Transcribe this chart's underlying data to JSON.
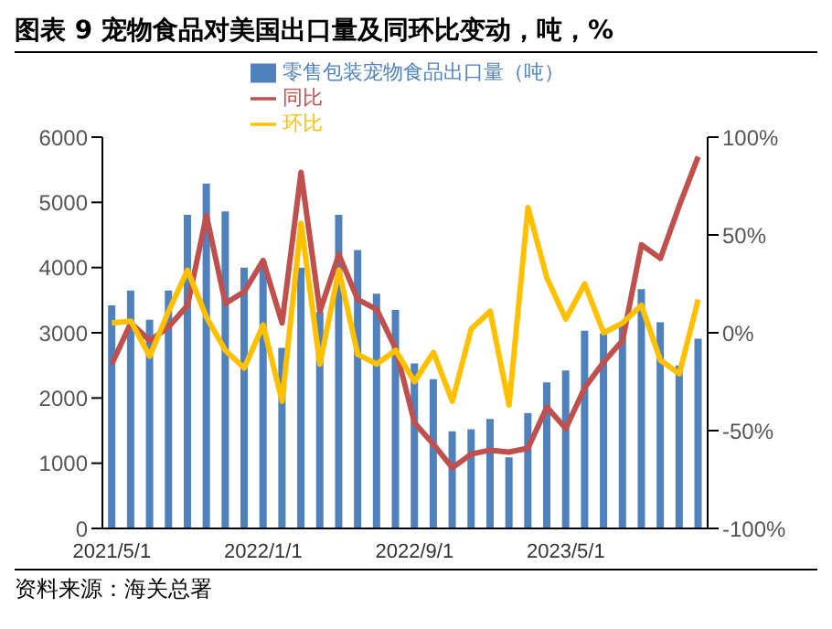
{
  "chart_data": {
    "type": "bar",
    "title": "图表 9 宠物食品对美国出口量及同环比变动，吨，%",
    "categories": [
      "2021/5/1",
      null,
      null,
      null,
      null,
      null,
      null,
      null,
      "2022/1/1",
      null,
      null,
      null,
      null,
      null,
      null,
      null,
      "2022/9/1",
      null,
      null,
      null,
      null,
      null,
      null,
      null,
      "2023/5/1",
      null,
      null,
      null,
      null,
      null,
      null,
      null
    ],
    "series": [
      {
        "name": "零售包装宠物食品出口量（吨）",
        "color": "#4f81bd",
        "values": [
          3420,
          3650,
          3200,
          3650,
          4810,
          5290,
          4860,
          4000,
          4100,
          2770,
          4000,
          3320,
          4810,
          4270,
          3600,
          3350,
          2530,
          2290,
          1490,
          1520,
          1680,
          1090,
          1770,
          2240,
          2420,
          3030,
          2990,
          3100,
          3670,
          3160,
          2500,
          2910
        ]
      },
      {
        "name": "同比",
        "type": "line",
        "axis": "y2",
        "color": "#c0504d",
        "values": [
          -16,
          5,
          -4,
          3,
          14,
          60,
          15,
          21,
          37,
          5,
          82,
          11,
          40,
          17,
          12,
          -8,
          -46,
          -57,
          -69,
          -62,
          -60,
          -61,
          -59,
          -38,
          -49,
          -28,
          -15,
          -4,
          45,
          38,
          65,
          90
        ]
      },
      {
        "name": "环比",
        "type": "line",
        "axis": "y2",
        "color": "#ffc000",
        "values": [
          5,
          6,
          -12,
          11,
          32,
          8,
          -9,
          -18,
          4,
          -35,
          56,
          -16,
          32,
          -11,
          -16,
          -9,
          -25,
          -10,
          -35,
          2,
          11,
          -37,
          64,
          28,
          7,
          25,
          0,
          5,
          14,
          -14,
          -21,
          17
        ]
      }
    ],
    "ylim": [
      0,
      6000
    ],
    "yticks": [
      0,
      1000,
      2000,
      3000,
      4000,
      5000,
      6000
    ],
    "y2lim": [
      -100,
      100
    ],
    "y2ticks": [
      {
        "value": -100,
        "label": "-100%"
      },
      {
        "value": -50,
        "label": "-50%"
      },
      {
        "value": 0,
        "label": "0%"
      },
      {
        "value": 50,
        "label": "50%"
      },
      {
        "value": 100,
        "label": "100%"
      }
    ],
    "legend": "top",
    "marker": "none",
    "line_style": "solid",
    "annotations": [
      "资料来源：海关总署"
    ]
  }
}
